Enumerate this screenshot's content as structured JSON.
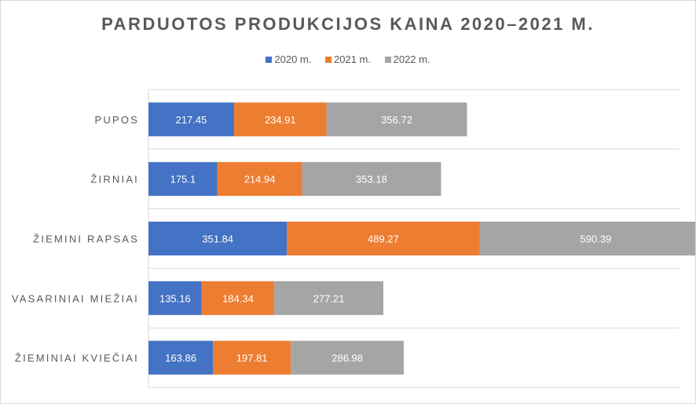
{
  "chart_data": {
    "type": "bar",
    "orientation": "horizontal",
    "stacked": true,
    "title": "PARDUOTOS PRODUKCIJOS KAINA 2020–2021 M.",
    "categories": [
      "PUPOS",
      "ŽIRNIAI",
      "ŽIEMINI RAPSAS",
      "VASARINIAI MIEŽIAI",
      "ŽIEMINIAI KVIEČIAI"
    ],
    "series": [
      {
        "name": "2020 m.",
        "color": "#4472c4",
        "values": [
          217.45,
          175.1,
          351.84,
          135.16,
          163.86
        ]
      },
      {
        "name": "2021 m.",
        "color": "#ed7d31",
        "values": [
          234.91,
          214.94,
          489.27,
          184.34,
          197.81
        ]
      },
      {
        "name": "2022 m.",
        "color": "#a5a5a5",
        "values": [
          356.72,
          353.18,
          590.39,
          277.21,
          286.98
        ]
      }
    ],
    "legend_position": "top",
    "grid": true
  }
}
